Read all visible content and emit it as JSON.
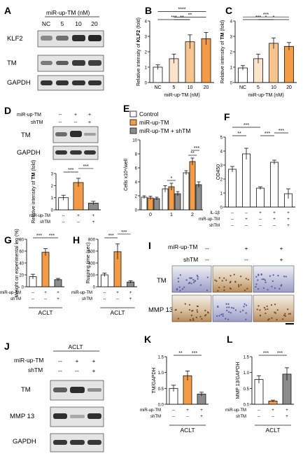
{
  "colors": {
    "white": "#ffffff",
    "light_orange": "#fce3cc",
    "mid_orange": "#f8c48d",
    "orange": "#f39b46",
    "dark_orange": "#ef8a2f",
    "gray": "#8c8c8c",
    "black": "#111111"
  },
  "panels": {
    "A": {
      "letter": "A",
      "treatment": "miR-up-TM (nM)",
      "doses": [
        "NC",
        "5",
        "10",
        "20"
      ],
      "rows": [
        "KLF2",
        "TM",
        "GAPDH"
      ]
    },
    "D": {
      "letter": "D",
      "conditions": [
        {
          "label": "miR-up-TM",
          "values": [
            "--",
            "+",
            "+"
          ]
        },
        {
          "label": "shTM",
          "values": [
            "--",
            "--",
            "+"
          ]
        }
      ],
      "rows": [
        "TM",
        "GAPDH"
      ]
    },
    "I": {
      "letter": "I",
      "conditions": [
        {
          "label": "miR-up-TM",
          "values": [
            "--",
            "+",
            "+"
          ]
        },
        {
          "label": "shTM",
          "values": [
            "--",
            "--",
            "+"
          ]
        }
      ],
      "rows": [
        "TM",
        "MMP 13"
      ]
    },
    "J": {
      "letter": "J",
      "group": "ACLT",
      "conditions": [
        {
          "label": "miR-up-TM",
          "values": [
            "--",
            "+",
            "+"
          ]
        },
        {
          "label": "shTM",
          "values": [
            "--",
            "--",
            "+"
          ]
        }
      ],
      "rows": [
        "TM",
        "MMP 13",
        "GAPDH"
      ]
    }
  },
  "chart_data": [
    {
      "id": "B",
      "letter": "B",
      "type": "bar",
      "categories": [
        "NC",
        "5",
        "10",
        "20"
      ],
      "values": [
        1.0,
        1.55,
        2.65,
        2.85
      ],
      "errors": [
        0.15,
        0.3,
        0.45,
        0.4
      ],
      "bar_colors": [
        "#ffffff",
        "#fce3cc",
        "#f8c48d",
        "#f39b46"
      ],
      "ylabel_line1": "Relative intensity of",
      "ylabel_line2": "KLF2",
      "ylabel_line3": "(fold)",
      "xlabel": "miR-up-TM (nM)",
      "ylim": [
        0,
        4
      ],
      "yticks": [
        "0",
        "1",
        "2",
        "3",
        "4"
      ],
      "sig": [
        {
          "from": 0,
          "to": 3,
          "label": "****"
        },
        {
          "from": 0,
          "to": 2,
          "label": "***"
        },
        {
          "from": 1,
          "to": 3,
          "label": "**"
        },
        {
          "from": 1,
          "to": 2,
          "label": "**"
        }
      ]
    },
    {
      "id": "C",
      "letter": "C",
      "type": "bar",
      "categories": [
        "NC",
        "5",
        "10",
        "20"
      ],
      "values": [
        0.95,
        1.55,
        2.55,
        2.35
      ],
      "errors": [
        0.15,
        0.3,
        0.35,
        0.25
      ],
      "bar_colors": [
        "#ffffff",
        "#fce3cc",
        "#f8c48d",
        "#f39b46"
      ],
      "ylabel_line1": "Relative intensity of",
      "ylabel_line2": "TM",
      "ylabel_line3": "(fold)",
      "xlabel": "miR-up-TM (nM)",
      "ylim": [
        0,
        4
      ],
      "yticks": [
        "0",
        "1",
        "2",
        "3",
        "4"
      ],
      "sig": [
        {
          "from": 0,
          "to": 3,
          "label": "***"
        },
        {
          "from": 0,
          "to": 2,
          "label": "***"
        },
        {
          "from": 1,
          "to": 3,
          "label": "*"
        },
        {
          "from": 1,
          "to": 2,
          "label": "*"
        }
      ]
    },
    {
      "id": "D",
      "type": "bar",
      "categories": [
        "1",
        "2",
        "3"
      ],
      "values": [
        1.0,
        2.25,
        0.55
      ],
      "errors": [
        0.2,
        0.35,
        0.15
      ],
      "bar_colors": [
        "#ffffff",
        "#f39b46",
        "#8c8c8c"
      ],
      "ylabel_line1": "Relative intensity of",
      "ylabel_line2": "TM",
      "ylabel_line3": "(fold)",
      "ylim": [
        0,
        3
      ],
      "yticks": [
        "0",
        "1",
        "2",
        "3"
      ],
      "sig": [
        {
          "from": 0,
          "to": 1,
          "label": "***"
        },
        {
          "from": 1,
          "to": 2,
          "label": "***"
        }
      ]
    },
    {
      "id": "E",
      "letter": "E",
      "type": "bar",
      "categories": [
        "0",
        "1",
        "2"
      ],
      "series": [
        {
          "name": "Control",
          "color": "#ffffff",
          "values": [
            1.8,
            3.0,
            5.3
          ],
          "errors": [
            0.2,
            0.45,
            0.3
          ]
        },
        {
          "name": "miR-up-TM",
          "color": "#f39b46",
          "values": [
            1.7,
            3.3,
            6.9
          ],
          "errors": [
            0.25,
            0.5,
            0.5
          ]
        },
        {
          "name": "miR-up-TM + shTM",
          "color": "#8c8c8c",
          "values": [
            1.6,
            2.3,
            3.6
          ],
          "errors": [
            0.2,
            0.3,
            0.4
          ]
        }
      ],
      "ylabel": "Cells x10⁴/well",
      "xlabel": "Days",
      "ylim": [
        0,
        10
      ],
      "yticks": [
        "0",
        "2",
        "4",
        "6",
        "8",
        "10"
      ],
      "sig": [
        {
          "group": 1,
          "label": "*"
        },
        {
          "group": 2,
          "label": "**"
        },
        {
          "group": 2,
          "label": "***"
        }
      ]
    },
    {
      "id": "F",
      "letter": "F",
      "type": "bar",
      "categories": [
        "1",
        "2",
        "3",
        "4",
        "5"
      ],
      "values": [
        2.7,
        3.8,
        1.35,
        3.2,
        0.95
      ],
      "errors": [
        0.2,
        0.4,
        0.1,
        0.15,
        0.35
      ],
      "bar_colors": [
        "#ffffff",
        "#ffffff",
        "#ffffff",
        "#ffffff",
        "#ffffff"
      ],
      "ylabel": "OD450",
      "ylim": [
        0,
        5
      ],
      "yticks": [
        "0",
        "1",
        "2",
        "3",
        "4",
        "5"
      ],
      "conditions": [
        {
          "label": "IL-1β",
          "values": [
            "--",
            "--",
            "+",
            "+",
            "+"
          ]
        },
        {
          "label": "miR-up-TM",
          "values": [
            "--",
            "+",
            "--",
            "+",
            "+"
          ]
        },
        {
          "label": "shTM",
          "values": [
            "--",
            "--",
            "--",
            "--",
            "+"
          ]
        }
      ],
      "sig": [
        {
          "from": 0,
          "to": 2,
          "label": "***"
        },
        {
          "from": 0,
          "to": 1,
          "label": "**"
        },
        {
          "from": 2,
          "to": 3,
          "label": "***"
        },
        {
          "from": 3,
          "to": 4,
          "label": "***"
        }
      ]
    },
    {
      "id": "G",
      "letter": "G",
      "type": "bar",
      "categories": [
        "1",
        "2",
        "3"
      ],
      "values": [
        17,
        58,
        12
      ],
      "errors": [
        4,
        6,
        2
      ],
      "bar_colors": [
        "#ffffff",
        "#f39b46",
        "#8c8c8c"
      ],
      "ylabel_line1": "Weight on",
      "ylabel_line2": "experimental leg",
      "ylabel_line3": "(%)",
      "ylim": [
        0,
        80
      ],
      "yticks": [
        "0",
        "20",
        "40",
        "60",
        "80"
      ],
      "conditions": [
        {
          "label": "miR-up-TM",
          "values": [
            "--",
            "+",
            "+"
          ]
        },
        {
          "label": "shTM",
          "values": [
            "--",
            "--",
            "+"
          ]
        }
      ],
      "group_label": "ACLT",
      "sig": [
        {
          "from": 0,
          "to": 1,
          "label": "***"
        },
        {
          "from": 1,
          "to": 2,
          "label": "***"
        }
      ]
    },
    {
      "id": "H",
      "letter": "H",
      "type": "bar",
      "categories": [
        "1",
        "2",
        "3"
      ],
      "values": [
        200,
        590,
        80
      ],
      "errors": [
        30,
        130,
        20
      ],
      "bar_colors": [
        "#ffffff",
        "#f39b46",
        "#8c8c8c"
      ],
      "ylabel_line1": "Running time",
      "ylabel_line2": "(sec)",
      "ylim": [
        0,
        800
      ],
      "yticks": [
        "0",
        "200",
        "400",
        "600",
        "800"
      ],
      "conditions": [
        {
          "label": "miR-up-TM",
          "values": [
            "--",
            "+",
            "+"
          ]
        },
        {
          "label": "shTM",
          "values": [
            "--",
            "--",
            "+"
          ]
        }
      ],
      "group_label": "ACLT",
      "sig": [
        {
          "from": 0,
          "to": 1,
          "label": "***"
        },
        {
          "from": 1,
          "to": 2,
          "label": "***"
        }
      ]
    },
    {
      "id": "K",
      "letter": "K",
      "type": "bar",
      "categories": [
        "1",
        "2",
        "3"
      ],
      "values": [
        0.5,
        0.9,
        0.32
      ],
      "errors": [
        0.1,
        0.15,
        0.06
      ],
      "bar_colors": [
        "#ffffff",
        "#f39b46",
        "#8c8c8c"
      ],
      "ylabel": "TM/GAPDH",
      "ylim": [
        0,
        1.5
      ],
      "yticks": [
        "0.0",
        "0.5",
        "1.0",
        "1.5"
      ],
      "conditions": [
        {
          "label": "miR-up-TM",
          "values": [
            "--",
            "+",
            "+"
          ]
        },
        {
          "label": "shTM",
          "values": [
            "--",
            "--",
            "+"
          ]
        }
      ],
      "group_label": "ACLT",
      "sig": [
        {
          "from": 0,
          "to": 1,
          "label": "**"
        },
        {
          "from": 1,
          "to": 2,
          "label": "***"
        }
      ]
    },
    {
      "id": "L",
      "letter": "L",
      "type": "bar",
      "categories": [
        "1",
        "2",
        "3"
      ],
      "values": [
        0.78,
        0.1,
        0.95
      ],
      "errors": [
        0.12,
        0.03,
        0.2
      ],
      "bar_colors": [
        "#ffffff",
        "#f39b46",
        "#8c8c8c"
      ],
      "ylabel": "MMP 13/GAPDH",
      "ylim": [
        0,
        1.5
      ],
      "yticks": [
        "0.0",
        "0.5",
        "1.0",
        "1.5"
      ],
      "conditions": [
        {
          "label": "miR-up-TM",
          "values": [
            "--",
            "+",
            "+"
          ]
        },
        {
          "label": "shTM",
          "values": [
            "--",
            "--",
            "+"
          ]
        }
      ],
      "group_label": "ACLT",
      "sig": [
        {
          "from": 0,
          "to": 1,
          "label": "***"
        },
        {
          "from": 1,
          "to": 2,
          "label": "***"
        }
      ]
    }
  ]
}
